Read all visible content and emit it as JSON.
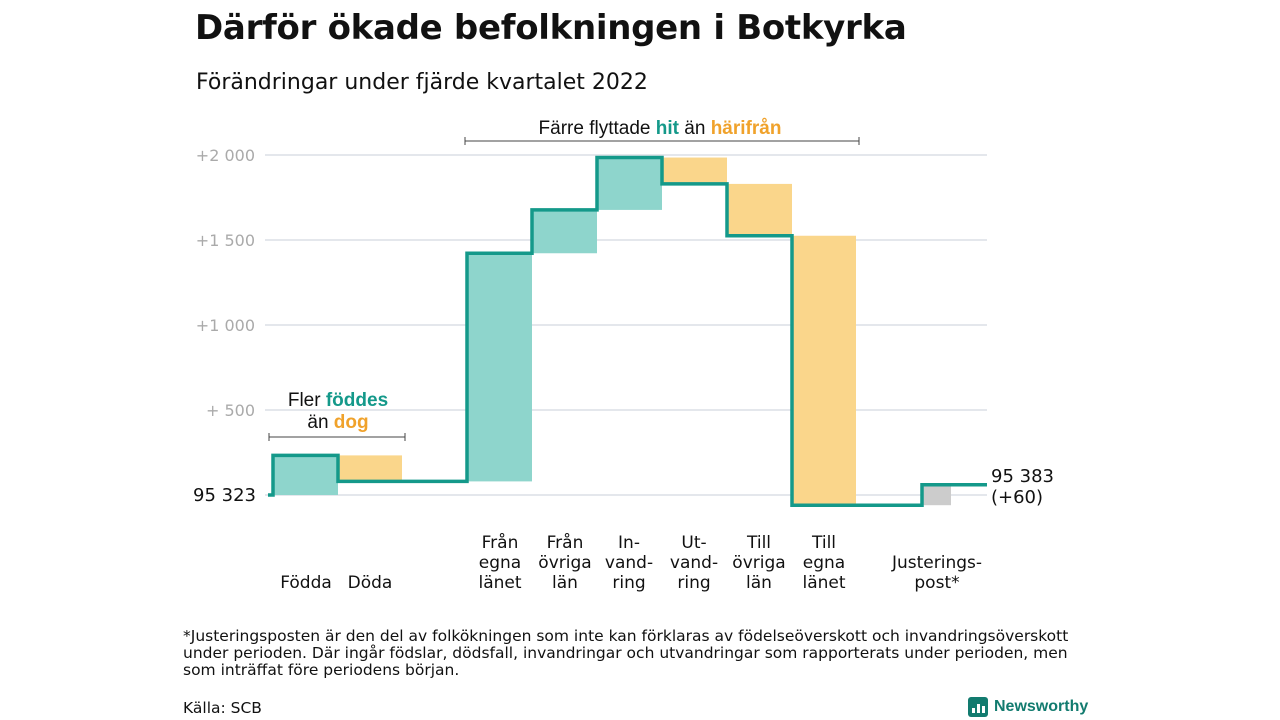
{
  "title": "Därför ökade befolkningen i Botkyrka",
  "subtitle": "Förändringar under fjärde kvartalet 2022",
  "colors": {
    "increase_fill": "#8ed5cc",
    "decrease_fill": "#fad68b",
    "adjustment_fill": "#cccccc",
    "line": "#14998a",
    "teal_text": "#14998a",
    "orange_text": "#f0a22b",
    "grid": "#dcdfe6",
    "tick_text": "#aaaaaa"
  },
  "annotations": {
    "migration": {
      "prefix": "Färre flyttade ",
      "hit": "hit",
      "middle": " än ",
      "harifran": "härifrån"
    },
    "births": {
      "line1_prefix": "Fler ",
      "line1_hl": "föddes",
      "line2_prefix": "än ",
      "line2_hl": "dog"
    }
  },
  "footnote": "*Justeringsposten är den del av folkökningen som inte kan förklaras av födelseöverskott och invandringsöverskott under perioden. Där ingår födslar, dödsfall, invandringar och utvandringar som rapporterats under perioden, men som inträffat före periodens början.",
  "source": "Källa: SCB",
  "brand": "Newsworthy",
  "chart_data": {
    "type": "waterfall",
    "start_label": "95 323",
    "end_label": [
      "95 383",
      "(+60)"
    ],
    "y_ticks": [
      {
        "value": 500,
        "label": "+ 500"
      },
      {
        "value": 1000,
        "label": "+1 000"
      },
      {
        "value": 1500,
        "label": "+1 500"
      },
      {
        "value": 2000,
        "label": "+2 000"
      }
    ],
    "ylim": [
      0,
      2000
    ],
    "grid": true,
    "steps": [
      {
        "label": [
          "Födda"
        ],
        "value": 233,
        "kind": "increase"
      },
      {
        "label": [
          "Döda"
        ],
        "value": -153,
        "kind": "decrease"
      },
      {
        "label": [
          "Från",
          "egna",
          "länet"
        ],
        "value": 1342,
        "kind": "increase"
      },
      {
        "label": [
          "Från",
          "övriga",
          "län"
        ],
        "value": 255,
        "kind": "increase"
      },
      {
        "label": [
          "In-",
          "vand-",
          "ring"
        ],
        "value": 308,
        "kind": "increase"
      },
      {
        "label": [
          "Ut-",
          "vand-",
          "ring"
        ],
        "value": -155,
        "kind": "decrease"
      },
      {
        "label": [
          "Till",
          "övriga",
          "län"
        ],
        "value": -305,
        "kind": "decrease"
      },
      {
        "label": [
          "Till",
          "egna",
          "länet"
        ],
        "value": -1585,
        "kind": "decrease"
      },
      {
        "label": [
          "Justerings-",
          "post*"
        ],
        "value": 120,
        "kind": "adjustment"
      }
    ]
  }
}
